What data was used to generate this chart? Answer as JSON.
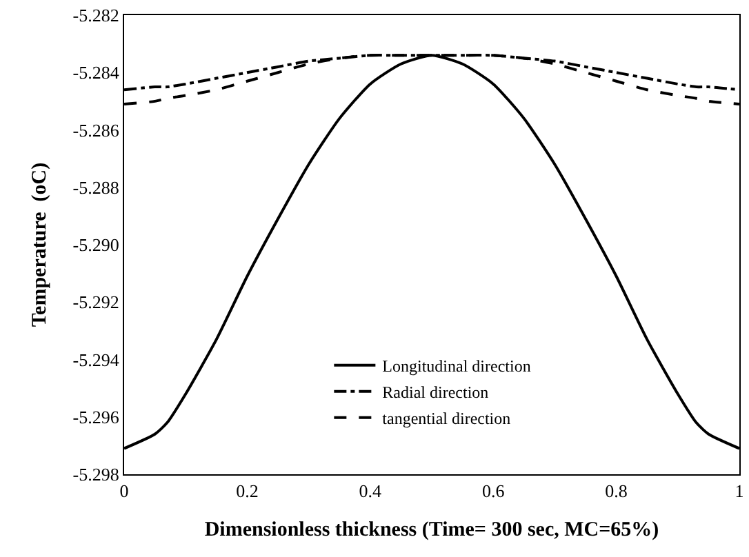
{
  "chart_data": {
    "type": "line",
    "xlabel": "Dimensionless thickness (Time= 300 sec, MC=65%)",
    "ylabel": "Temperature  (oC)",
    "x": [
      0,
      0.05,
      0.07,
      0.1,
      0.15,
      0.2,
      0.25,
      0.3,
      0.35,
      0.4,
      0.45,
      0.5,
      0.55,
      0.6,
      0.65,
      0.7,
      0.75,
      0.8,
      0.85,
      0.9,
      0.93,
      0.95,
      1
    ],
    "series": [
      {
        "name": "Longitudinal direction",
        "color": "#000000",
        "line_style": "solid",
        "values": [
          -5.2971,
          -5.2966,
          -5.2962,
          -5.2952,
          -5.2933,
          -5.2911,
          -5.2891,
          -5.2872,
          -5.2856,
          -5.2844,
          -5.2837,
          -5.2834,
          -5.2837,
          -5.2844,
          -5.2856,
          -5.2872,
          -5.2891,
          -5.2911,
          -5.2933,
          -5.2952,
          -5.2962,
          -5.2966,
          -5.2971
        ]
      },
      {
        "name": "Radial direction",
        "color": "#000000",
        "line_style": "dashdot",
        "values": [
          -5.2846,
          -5.2845,
          -5.2845,
          -5.2844,
          -5.2842,
          -5.284,
          -5.2838,
          -5.2836,
          -5.2835,
          -5.2834,
          -5.2834,
          -5.2834,
          -5.2834,
          -5.2834,
          -5.2835,
          -5.2836,
          -5.2838,
          -5.284,
          -5.2842,
          -5.2844,
          -5.2845,
          -5.2845,
          -5.2846
        ]
      },
      {
        "name": "tangential direction",
        "color": "#000000",
        "line_style": "dashed",
        "values": [
          -5.2851,
          -5.285,
          -5.2849,
          -5.2848,
          -5.2846,
          -5.2843,
          -5.284,
          -5.2837,
          -5.2835,
          -5.2834,
          -5.2834,
          -5.2834,
          -5.2834,
          -5.2834,
          -5.2835,
          -5.2837,
          -5.284,
          -5.2843,
          -5.2846,
          -5.2848,
          -5.2849,
          -5.285,
          -5.2851
        ]
      }
    ],
    "xlim": [
      0,
      1
    ],
    "xticks": [
      0,
      0.2,
      0.4,
      0.6,
      0.8,
      {
        "value": 1,
        "label": "1"
      }
    ],
    "ylim": [
      -5.298,
      -5.282
    ],
    "yticks": [
      -5.298,
      -5.296,
      -5.294,
      -5.292,
      {
        "value": -5.29,
        "label": "-5.290"
      },
      -5.288,
      -5.286,
      -5.284,
      -5.282
    ],
    "legend": "bottom",
    "marker": "none"
  }
}
